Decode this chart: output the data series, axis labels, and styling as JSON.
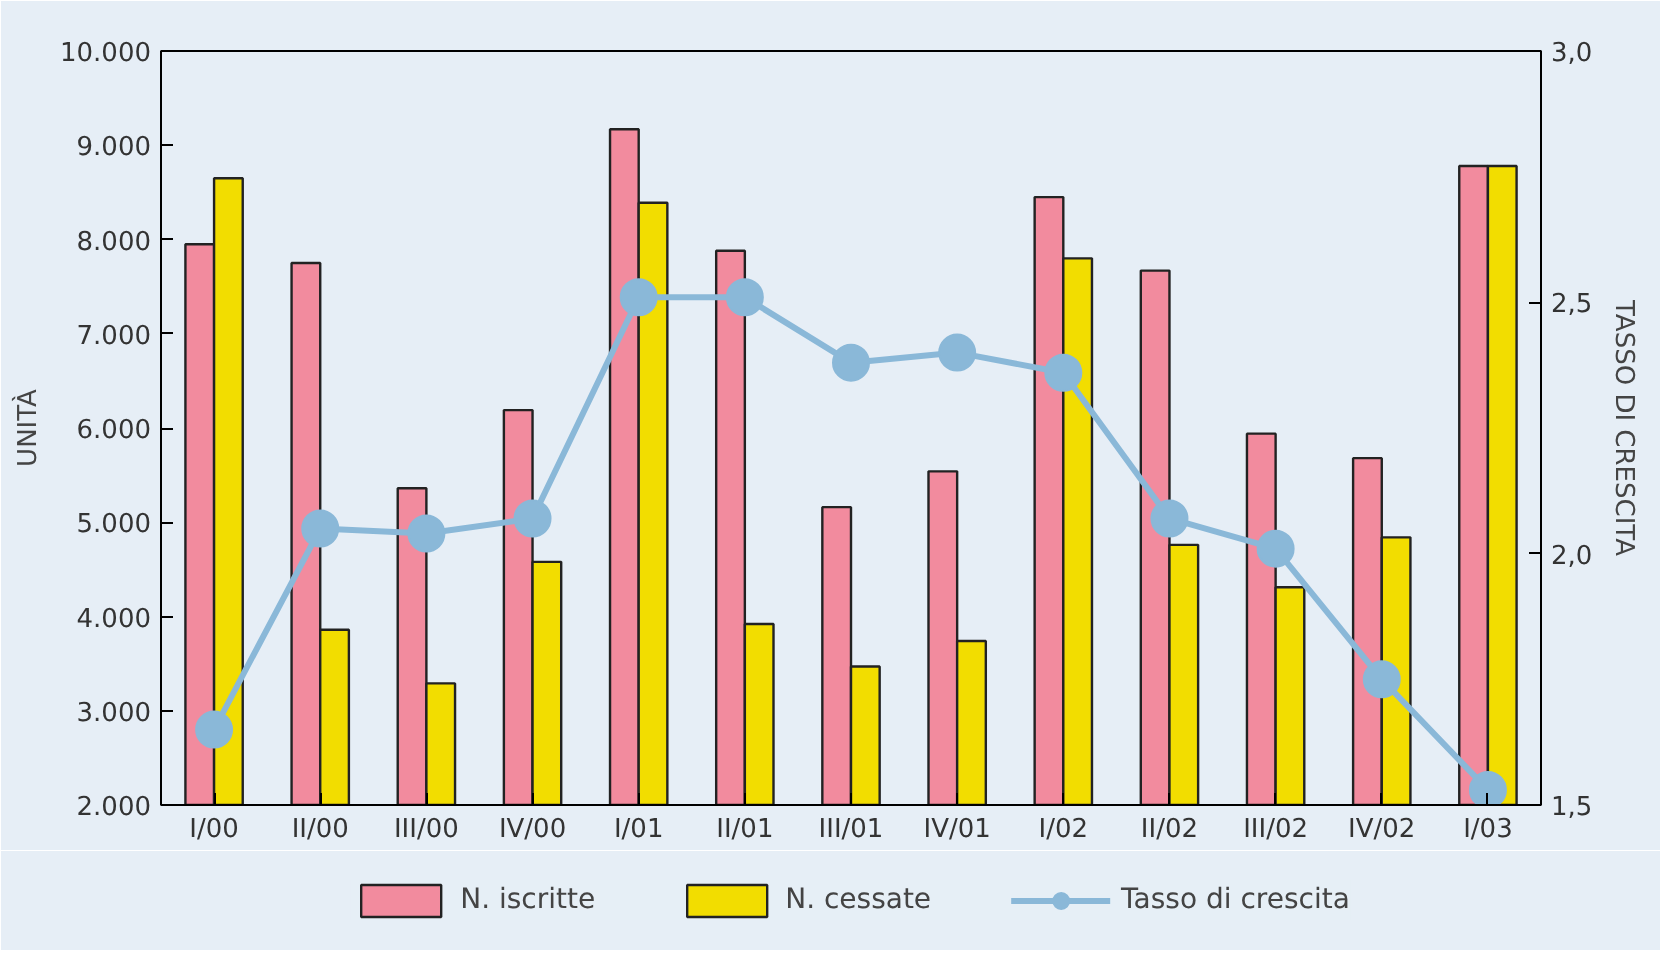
{
  "chart_data": {
    "type": "bar",
    "xlabel": null,
    "ylabel": "UNITÀ",
    "y2label": "TASSO DI CRESCITA",
    "categories": [
      "I/00",
      "II/00",
      "III/00",
      "IV/00",
      "I/01",
      "II/01",
      "III/01",
      "IV/01",
      "I/02",
      "II/02",
      "III/02",
      "IV/02",
      "I/03"
    ],
    "series": [
      {
        "name": "N. iscritte",
        "color": "#f28b9e",
        "values": [
          7950,
          7750,
          5360,
          6190,
          9170,
          7880,
          5160,
          5540,
          8450,
          7670,
          5940,
          5680,
          8780
        ]
      },
      {
        "name": "N. cessate",
        "color": "#f2dd00",
        "values": [
          8650,
          3860,
          3290,
          4580,
          8390,
          3920,
          3470,
          3740,
          7800,
          4760,
          4310,
          4840,
          8780
        ]
      },
      {
        "name": "Tasso di crescita",
        "type": "line",
        "axis": "y2",
        "marker": "circle",
        "color": "#8ab8d8",
        "values": [
          1.65,
          2.05,
          2.04,
          2.07,
          2.51,
          2.51,
          2.38,
          2.4,
          2.36,
          2.07,
          2.01,
          1.75,
          1.53
        ]
      }
    ],
    "ylim": [
      2000,
      10000
    ],
    "yticks": [
      {
        "value": 2000,
        "label": "2.000"
      },
      {
        "value": 3000,
        "label": "3.000"
      },
      {
        "value": 4000,
        "label": "4.000"
      },
      {
        "value": 5000,
        "label": "5.000"
      },
      {
        "value": 6000,
        "label": "6.000"
      },
      {
        "value": 7000,
        "label": "7.000"
      },
      {
        "value": 8000,
        "label": "8.000"
      },
      {
        "value": 9000,
        "label": "9.000"
      },
      {
        "value": 10000,
        "label": "10.000"
      }
    ],
    "y2lim": [
      1.5,
      3.0
    ],
    "y2ticks": [
      {
        "value": 1.5,
        "label": "1,5"
      },
      {
        "value": 2.0,
        "label": "2,0"
      },
      {
        "value": 2.5,
        "label": "2,5"
      },
      {
        "value": 3.0,
        "label": "3,0"
      }
    ],
    "grid": false,
    "legend": "bottom"
  }
}
